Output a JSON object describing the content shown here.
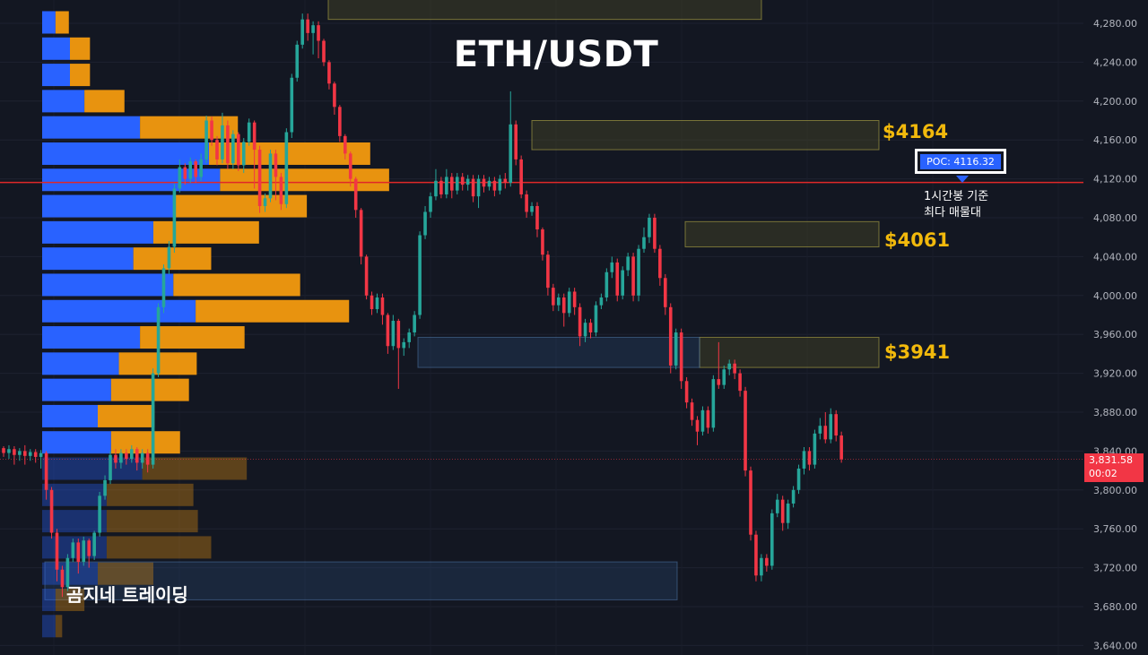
{
  "header": {
    "title": "ETH/USDT"
  },
  "annotations": {
    "level_4164": "$4164",
    "level_4061": "$4061",
    "level_3941": "$3941",
    "poc_label": "POC: 4116.32",
    "poc_note_line1": "1시간봉 기준",
    "poc_note_line2": "최다 매물대",
    "brand": "곰지네 트레이딩",
    "last_price": "3,831.58",
    "countdown": "00:02"
  },
  "colors": {
    "background": "#131722",
    "up": "#26a69a",
    "down": "#f23645",
    "poc_line": "#e02828",
    "volume_blue": "#2962ff",
    "volume_orange": "#e8930f",
    "level_text": "#f2b90c"
  },
  "chart_data": {
    "type": "candlestick",
    "symbol": "ETH/USDT",
    "y_axis": {
      "ticks": [
        "4,280.00",
        "4,240.00",
        "4,200.00",
        "4,160.00",
        "4,120.00",
        "4,080.00",
        "4,040.00",
        "4,000.00",
        "3,960.00",
        "3,920.00",
        "3,880.00",
        "3,840.00",
        "3,800.00",
        "3,760.00",
        "3,720.00",
        "3,680.00",
        "3,640.00"
      ],
      "range": [
        3640,
        4290
      ]
    },
    "poc_price": 4116.32,
    "last_price": 3831.58,
    "candles": [
      [
        3843,
        3838,
        3845,
        3834
      ],
      [
        3838,
        3842,
        3846,
        3832
      ],
      [
        3842,
        3836,
        3845,
        3826
      ],
      [
        3836,
        3840,
        3843,
        3830
      ],
      [
        3840,
        3835,
        3846,
        3826
      ],
      [
        3835,
        3839,
        3842,
        3830
      ],
      [
        3839,
        3834,
        3842,
        3828
      ],
      [
        3834,
        3838,
        3841,
        3822
      ],
      [
        3838,
        3800,
        3840,
        3790
      ],
      [
        3800,
        3756,
        3803,
        3750
      ],
      [
        3756,
        3718,
        3760,
        3706
      ],
      [
        3718,
        3700,
        3722,
        3690
      ],
      [
        3700,
        3730,
        3734,
        3696
      ],
      [
        3730,
        3746,
        3750,
        3726
      ],
      [
        3746,
        3726,
        3750,
        3714
      ],
      [
        3726,
        3748,
        3752,
        3722
      ],
      [
        3748,
        3732,
        3750,
        3720
      ],
      [
        3732,
        3756,
        3758,
        3728
      ],
      [
        3756,
        3794,
        3798,
        3752
      ],
      [
        3794,
        3810,
        3815,
        3790
      ],
      [
        3810,
        3836,
        3840,
        3806
      ],
      [
        3836,
        3828,
        3842,
        3822
      ],
      [
        3828,
        3838,
        3842,
        3822
      ],
      [
        3838,
        3832,
        3842,
        3826
      ],
      [
        3832,
        3842,
        3846,
        3828
      ],
      [
        3842,
        3828,
        3844,
        3820
      ],
      [
        3828,
        3838,
        3842,
        3822
      ],
      [
        3838,
        3826,
        3842,
        3818
      ],
      [
        3826,
        3920,
        3925,
        3822
      ],
      [
        3920,
        3988,
        3992,
        3916
      ],
      [
        3988,
        4028,
        4032,
        3982
      ],
      [
        4028,
        4050,
        4056,
        4022
      ],
      [
        4050,
        4110,
        4115,
        4044
      ],
      [
        4110,
        4132,
        4140,
        4106
      ],
      [
        4132,
        4120,
        4136,
        4114
      ],
      [
        4120,
        4138,
        4142,
        4116
      ],
      [
        4138,
        4122,
        4140,
        4116
      ],
      [
        4122,
        4140,
        4146,
        4118
      ],
      [
        4140,
        4180,
        4185,
        4136
      ],
      [
        4180,
        4160,
        4184,
        4154
      ],
      [
        4160,
        4140,
        4164,
        4134
      ],
      [
        4140,
        4175,
        4188,
        4136
      ],
      [
        4175,
        4136,
        4180,
        4130
      ],
      [
        4136,
        4166,
        4170,
        4130
      ],
      [
        4166,
        4134,
        4168,
        4128
      ],
      [
        4134,
        4158,
        4162,
        4126
      ],
      [
        4158,
        4178,
        4182,
        4154
      ],
      [
        4178,
        4150,
        4180,
        4110
      ],
      [
        4150,
        4092,
        4154,
        4085
      ],
      [
        4092,
        4100,
        4105,
        4086
      ],
      [
        4100,
        4146,
        4150,
        4096
      ],
      [
        4146,
        4122,
        4150,
        4098
      ],
      [
        4122,
        4094,
        4126,
        4088
      ],
      [
        4094,
        4168,
        4172,
        4090
      ],
      [
        4168,
        4224,
        4228,
        4162
      ],
      [
        4224,
        4258,
        4262,
        4220
      ],
      [
        4258,
        4284,
        4290,
        4254
      ],
      [
        4284,
        4270,
        4290,
        4262
      ],
      [
        4270,
        4278,
        4282,
        4248
      ],
      [
        4278,
        4262,
        4282,
        4244
      ],
      [
        4262,
        4240,
        4264,
        4236
      ],
      [
        4240,
        4218,
        4242,
        4212
      ],
      [
        4218,
        4194,
        4220,
        4186
      ],
      [
        4194,
        4164,
        4196,
        4158
      ],
      [
        4164,
        4146,
        4166,
        4140
      ],
      [
        4146,
        4120,
        4148,
        4112
      ],
      [
        4120,
        4088,
        4122,
        4080
      ],
      [
        4088,
        4040,
        4090,
        4032
      ],
      [
        4040,
        4000,
        4042,
        3996
      ],
      [
        4000,
        3986,
        4004,
        3980
      ],
      [
        3986,
        3998,
        4002,
        3982
      ],
      [
        3998,
        3980,
        4002,
        3970
      ],
      [
        3980,
        3948,
        3982,
        3940
      ],
      [
        3948,
        3974,
        3980,
        3944
      ],
      [
        3974,
        3946,
        3976,
        3904
      ],
      [
        3946,
        3952,
        3956,
        3938
      ],
      [
        3952,
        3962,
        3966,
        3946
      ],
      [
        3962,
        3980,
        3984,
        3958
      ],
      [
        3980,
        4062,
        4066,
        3976
      ],
      [
        4062,
        4086,
        4092,
        4058
      ],
      [
        4086,
        4102,
        4106,
        4080
      ],
      [
        4102,
        4118,
        4130,
        4098
      ],
      [
        4118,
        4104,
        4122,
        4100
      ],
      [
        4104,
        4122,
        4130,
        4100
      ],
      [
        4122,
        4108,
        4126,
        4100
      ],
      [
        4108,
        4122,
        4126,
        4104
      ],
      [
        4122,
        4114,
        4126,
        4108
      ],
      [
        4114,
        4120,
        4124,
        4108
      ],
      [
        4120,
        4102,
        4124,
        4096
      ],
      [
        4102,
        4120,
        4124,
        4090
      ],
      [
        4120,
        4112,
        4124,
        4106
      ],
      [
        4112,
        4118,
        4122,
        4108
      ],
      [
        4118,
        4108,
        4122,
        4102
      ],
      [
        4108,
        4120,
        4124,
        4104
      ],
      [
        4120,
        4116,
        4126,
        4110
      ],
      [
        4116,
        4176,
        4210,
        4112
      ],
      [
        4176,
        4140,
        4180,
        4134
      ],
      [
        4140,
        4104,
        4144,
        4100
      ],
      [
        4104,
        4086,
        4108,
        4080
      ],
      [
        4086,
        4092,
        4096,
        4082
      ],
      [
        4092,
        4068,
        4096,
        4060
      ],
      [
        4068,
        4042,
        4070,
        4036
      ],
      [
        4042,
        4008,
        4046,
        4000
      ],
      [
        4008,
        3990,
        4012,
        3984
      ],
      [
        3990,
        3998,
        4002,
        3984
      ],
      [
        3998,
        3982,
        4002,
        3968
      ],
      [
        3982,
        4004,
        4008,
        3978
      ],
      [
        4004,
        3988,
        4008,
        3980
      ],
      [
        3988,
        3958,
        3992,
        3948
      ],
      [
        3958,
        3972,
        3976,
        3952
      ],
      [
        3972,
        3962,
        3976,
        3956
      ],
      [
        3962,
        3990,
        3994,
        3958
      ],
      [
        3990,
        3998,
        4002,
        3986
      ],
      [
        3998,
        4024,
        4028,
        3994
      ],
      [
        4024,
        4034,
        4040,
        4018
      ],
      [
        4034,
        4000,
        4038,
        3994
      ],
      [
        4000,
        4026,
        4030,
        3996
      ],
      [
        4026,
        4040,
        4044,
        4020
      ],
      [
        4040,
        4000,
        4044,
        3994
      ],
      [
        4000,
        4048,
        4052,
        3994
      ],
      [
        4048,
        4060,
        4070,
        4044
      ],
      [
        4060,
        4080,
        4084,
        4054
      ],
      [
        4080,
        4048,
        4084,
        4044
      ],
      [
        4048,
        4018,
        4052,
        4010
      ],
      [
        4018,
        3988,
        4022,
        3980
      ],
      [
        3988,
        3928,
        3992,
        3920
      ],
      [
        3928,
        3962,
        3966,
        3924
      ],
      [
        3962,
        3912,
        3966,
        3904
      ],
      [
        3912,
        3890,
        3916,
        3884
      ],
      [
        3890,
        3872,
        3894,
        3866
      ],
      [
        3872,
        3860,
        3876,
        3846
      ],
      [
        3860,
        3882,
        3886,
        3856
      ],
      [
        3882,
        3864,
        3886,
        3858
      ],
      [
        3864,
        3914,
        3918,
        3860
      ],
      [
        3914,
        3908,
        3952,
        3904
      ],
      [
        3908,
        3924,
        3928,
        3904
      ],
      [
        3924,
        3930,
        3934,
        3918
      ],
      [
        3930,
        3920,
        3934,
        3914
      ],
      [
        3920,
        3902,
        3924,
        3896
      ],
      [
        3902,
        3820,
        3906,
        3814
      ],
      [
        3820,
        3754,
        3824,
        3748
      ],
      [
        3754,
        3712,
        3758,
        3706
      ],
      [
        3712,
        3730,
        3734,
        3706
      ],
      [
        3730,
        3722,
        3734,
        3716
      ],
      [
        3722,
        3776,
        3780,
        3718
      ],
      [
        3776,
        3790,
        3796,
        3772
      ],
      [
        3790,
        3766,
        3794,
        3758
      ],
      [
        3766,
        3786,
        3790,
        3760
      ],
      [
        3786,
        3800,
        3804,
        3782
      ],
      [
        3800,
        3822,
        3826,
        3796
      ],
      [
        3822,
        3840,
        3844,
        3816
      ],
      [
        3840,
        3826,
        3844,
        3820
      ],
      [
        3826,
        3858,
        3862,
        3822
      ],
      [
        3858,
        3866,
        3874,
        3852
      ],
      [
        3866,
        3852,
        3880,
        3848
      ],
      [
        3852,
        3878,
        3884,
        3848
      ],
      [
        3878,
        3856,
        3882,
        3850
      ],
      [
        3856,
        3831.58,
        3860,
        3828
      ]
    ],
    "volume_profile": [
      {
        "price": 4280,
        "buy": 12,
        "sell": 12
      },
      {
        "price": 4253,
        "buy": 25,
        "sell": 18
      },
      {
        "price": 4226,
        "buy": 25,
        "sell": 18
      },
      {
        "price": 4199,
        "buy": 38,
        "sell": 36
      },
      {
        "price": 4172,
        "buy": 88,
        "sell": 88
      },
      {
        "price": 4145,
        "buy": 150,
        "sell": 145
      },
      {
        "price": 4118,
        "buy": 160,
        "sell": 152
      },
      {
        "price": 4091,
        "buy": 118,
        "sell": 120
      },
      {
        "price": 4064,
        "buy": 100,
        "sell": 95
      },
      {
        "price": 4037,
        "buy": 82,
        "sell": 70
      },
      {
        "price": 4010,
        "buy": 118,
        "sell": 114
      },
      {
        "price": 3983,
        "buy": 138,
        "sell": 138
      },
      {
        "price": 3956,
        "buy": 88,
        "sell": 94
      },
      {
        "price": 3929,
        "buy": 69,
        "sell": 70
      },
      {
        "price": 3902,
        "buy": 62,
        "sell": 70
      },
      {
        "price": 3875,
        "buy": 50,
        "sell": 51
      },
      {
        "price": 3848,
        "buy": 62,
        "sell": 62
      },
      {
        "price": 3821,
        "buy": 90,
        "sell": 94
      },
      {
        "price": 3794,
        "buy": 58,
        "sell": 78
      },
      {
        "price": 3767,
        "buy": 58,
        "sell": 82
      },
      {
        "price": 3740,
        "buy": 58,
        "sell": 94
      },
      {
        "price": 3713,
        "buy": 50,
        "sell": 50
      },
      {
        "price": 3686,
        "buy": 12,
        "sell": 26
      },
      {
        "price": 3659,
        "buy": 12,
        "sell": 6
      }
    ],
    "zones": [
      {
        "from": 4150,
        "to": 4180,
        "style": "yellow"
      },
      {
        "from": 4050,
        "to": 4076,
        "style": "yellow"
      },
      {
        "from": 3926,
        "to": 3957,
        "style": "yellow"
      },
      {
        "from": 3926,
        "to": 3957,
        "style": "blue"
      },
      {
        "from": 3687,
        "to": 3726,
        "style": "blue"
      },
      {
        "from": 4284,
        "to": 4310,
        "style": "yellow"
      }
    ]
  }
}
